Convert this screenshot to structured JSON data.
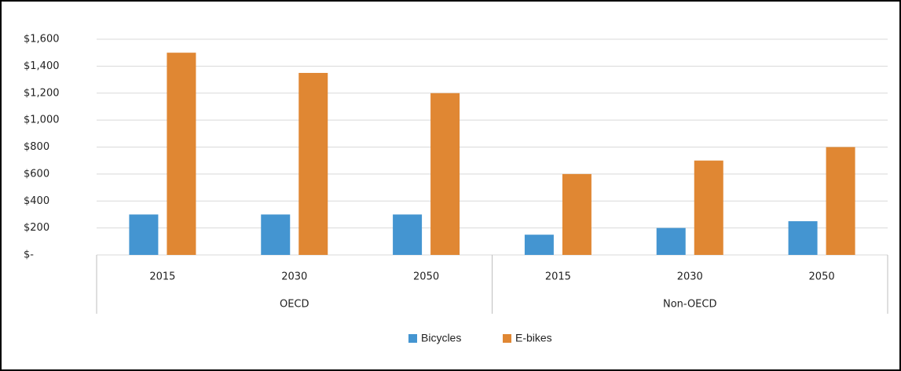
{
  "chart_data": {
    "type": "bar",
    "category_groups": [
      {
        "label": "OECD",
        "categories": [
          "2015",
          "2030",
          "2050"
        ]
      },
      {
        "label": "Non-OECD",
        "categories": [
          "2015",
          "2030",
          "2050"
        ]
      }
    ],
    "series": [
      {
        "name": "Bicycles",
        "color": "#4495d1",
        "values": [
          300,
          300,
          300,
          150,
          200,
          250
        ]
      },
      {
        "name": "E-bikes",
        "color": "#e08733",
        "values": [
          1500,
          1350,
          1200,
          600,
          700,
          800
        ]
      }
    ],
    "ylim": [
      0,
      1600
    ],
    "yticks": [
      {
        "value": 0,
        "label": "$-"
      },
      {
        "value": 200,
        "label": "$200"
      },
      {
        "value": 400,
        "label": "$400"
      },
      {
        "value": 600,
        "label": "$600"
      },
      {
        "value": 800,
        "label": "$800"
      },
      {
        "value": 1000,
        "label": "$1,000"
      },
      {
        "value": 1200,
        "label": "$1,200"
      },
      {
        "value": 1400,
        "label": "$1,400"
      },
      {
        "value": 1600,
        "label": "$1,600"
      }
    ],
    "grid": true,
    "legend": "bottom"
  }
}
